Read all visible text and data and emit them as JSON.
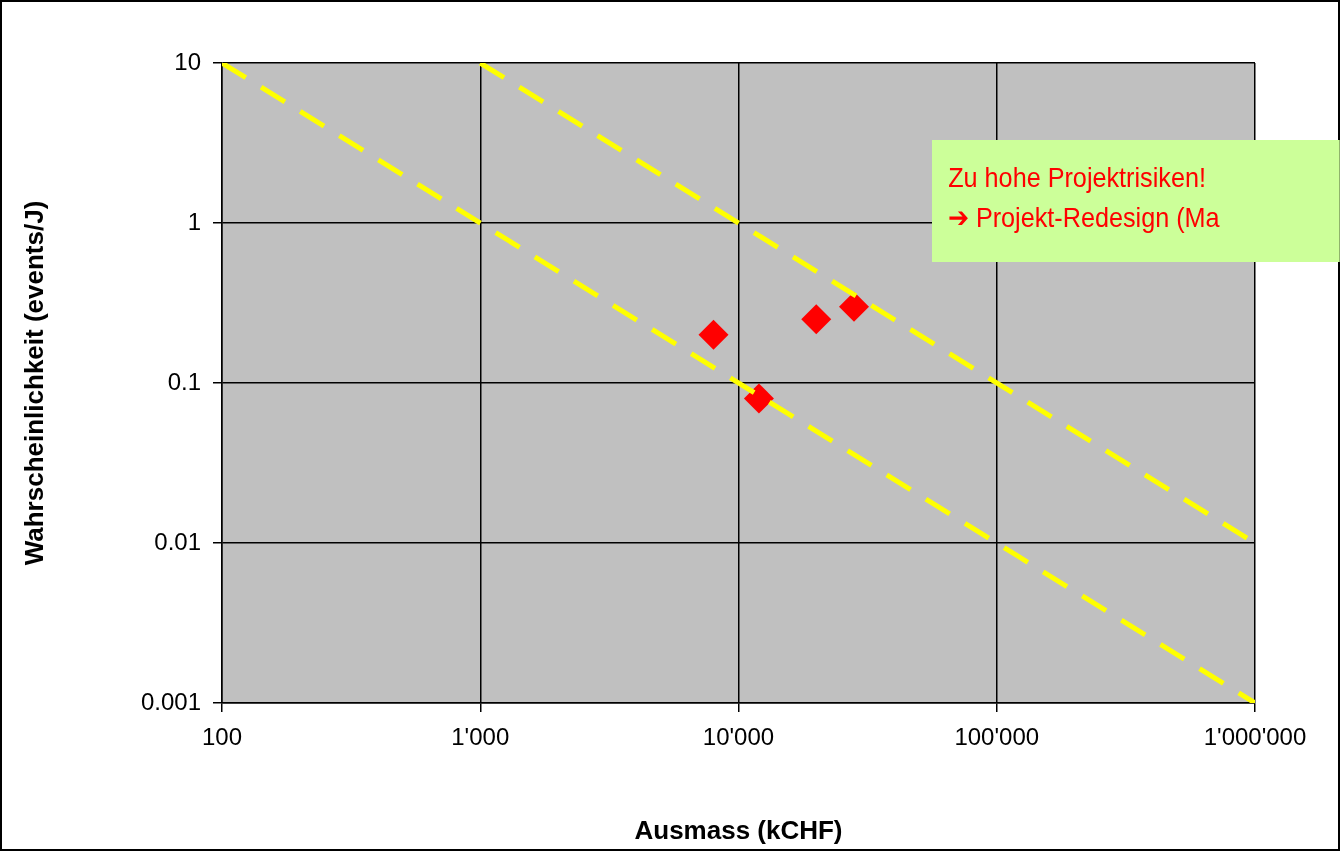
{
  "chart_data": {
    "type": "scatter",
    "xlabel": "Ausmass (kCHF)",
    "ylabel": "Wahrscheinlichkeit (events/J)",
    "log": "xy",
    "xlim": [
      100,
      1000000
    ],
    "ylim": [
      0.001,
      10
    ],
    "xticks": [
      100,
      {
        "value": 1000,
        "label": "1'000"
      },
      {
        "value": 10000,
        "label": "10'000"
      },
      {
        "value": 100000,
        "label": "100'000"
      },
      {
        "value": 1000000,
        "label": "1'000'000"
      }
    ],
    "yticks": [
      0.001,
      0.01,
      0.1,
      1,
      10
    ],
    "grid": true,
    "legend": false,
    "marker": "diamond",
    "annotations": [
      "Zu hohe Projektrisiken!",
      "➔ Projekt-Redesign (Ma"
    ],
    "series": [
      {
        "type": "line",
        "color": "#ffff00",
        "line_style": "dashed",
        "marker": "none",
        "x": [
          100,
          1000000
        ],
        "values": [
          10,
          0.001
        ]
      },
      {
        "type": "line",
        "color": "#ffff00",
        "line_style": "dashed",
        "marker": "none",
        "x": [
          1000,
          1000000
        ],
        "values": [
          10,
          0.01
        ]
      },
      {
        "type": "scatter",
        "color": "#ff0000",
        "x": [
          8000,
          12000,
          20000,
          28000
        ],
        "values": [
          0.2,
          0.08,
          0.25,
          0.3
        ]
      }
    ]
  }
}
